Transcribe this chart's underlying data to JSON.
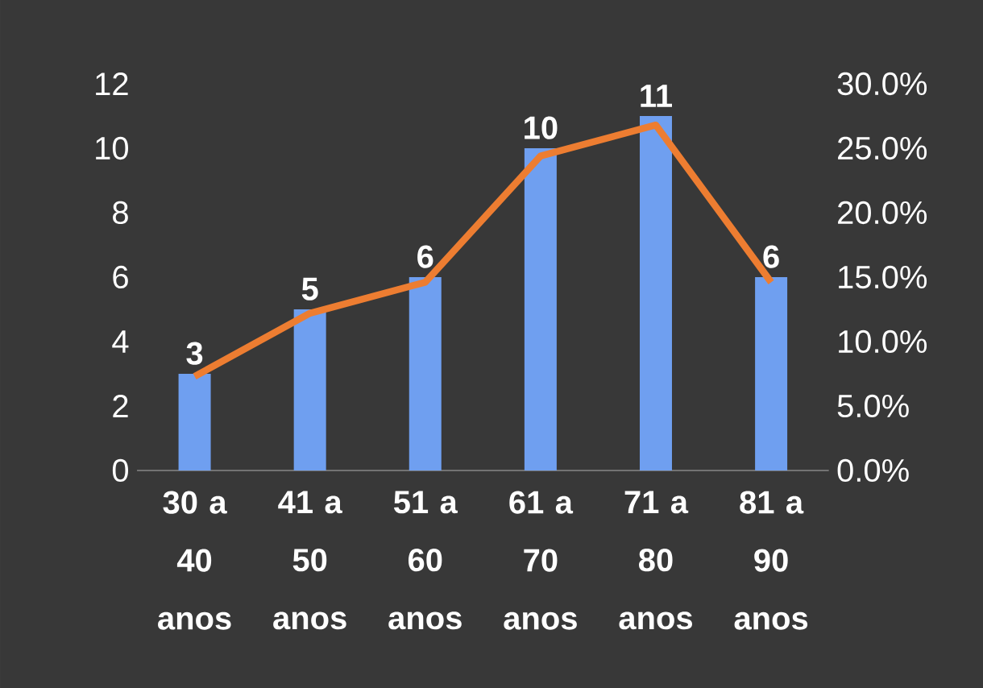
{
  "chart_data": {
    "type": "bar",
    "categories": [
      "30 a 40 anos",
      "41 a 50 anos",
      "51 a 60 anos",
      "61 a 70 anos",
      "71 a 80 anos",
      "81 a 90 anos"
    ],
    "series": [
      {
        "color": "#6f9ff0",
        "values": [
          3,
          5,
          6,
          10,
          11,
          6
        ],
        "value_labels": [
          "3",
          "5",
          "6",
          "10",
          "11",
          "6"
        ]
      },
      {
        "type": "line",
        "axis": "y2",
        "color": "#ed7d31",
        "values": [
          7.3,
          12.2,
          14.6,
          24.4,
          26.8,
          14.6
        ]
      }
    ],
    "ylim": [
      0,
      12
    ],
    "yticks": [
      0,
      2,
      4,
      6,
      8,
      10,
      12
    ],
    "y2lim": [
      0,
      30
    ],
    "y2ticks": [
      {
        "value": 0,
        "label": "0.0%"
      },
      {
        "value": 5,
        "label": "5.0%"
      },
      {
        "value": 10,
        "label": "10.0%"
      },
      {
        "value": 15,
        "label": "15.0%"
      },
      {
        "value": 20,
        "label": "20.0%"
      },
      {
        "value": 25,
        "label": "25.0%"
      },
      {
        "value": 30,
        "label": "30.0%"
      }
    ],
    "grid": false,
    "legend": false,
    "marker": "none",
    "line_style": "solid"
  }
}
